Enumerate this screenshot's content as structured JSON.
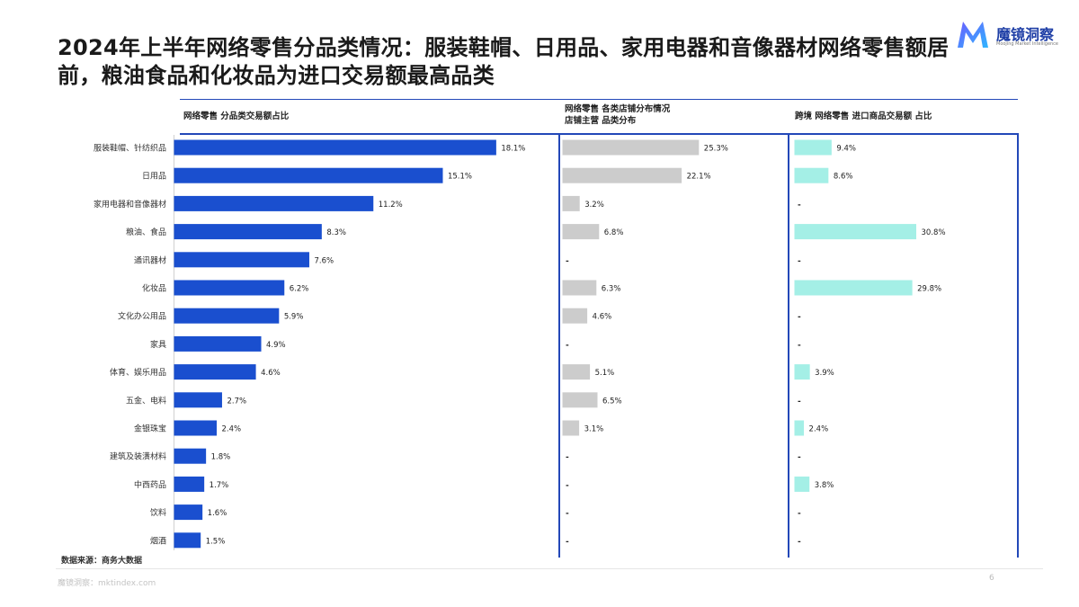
{
  "title": "2024年上半年网络零售分品类情况：服装鞋帽、日用品、家用电器和音像器材网络零售额居前，粮油食品和化妆品为进口交易额最高品类",
  "logo": {
    "name": "魔镜洞察",
    "tagline": "Moojing Market Intelligence"
  },
  "colors": {
    "main": "#1a4fcf",
    "store": "#cccccc",
    "import": "#a4efe6",
    "accent_line": "#2348b8"
  },
  "panels": {
    "main_header": "网络零售 分品类交易额占比",
    "store_header_line1": "网络零售 各类店铺分布情况",
    "store_header_line2": "店铺主营 品类分布",
    "import_header": "跨境 网络零售 进口商品交易额 占比"
  },
  "chart_data": [
    {
      "type": "bar",
      "orientation": "horizontal",
      "title": "网络零售 分品类交易额占比",
      "categories": [
        "服装鞋帽、针纺织品",
        "日用品",
        "家用电器和音像器材",
        "粮油、食品",
        "通讯器材",
        "化妆品",
        "文化办公用品",
        "家具",
        "体育、娱乐用品",
        "五金、电料",
        "金银珠宝",
        "建筑及装潢材料",
        "中西药品",
        "饮料",
        "烟酒"
      ],
      "values": [
        18.1,
        15.1,
        11.2,
        8.3,
        7.6,
        6.2,
        5.9,
        4.9,
        4.6,
        2.7,
        2.4,
        1.8,
        1.7,
        1.6,
        1.5
      ],
      "labels": [
        "18.1%",
        "15.1%",
        "11.2%",
        "8.3%",
        "7.6%",
        "6.2%",
        "5.9%",
        "4.9%",
        "4.6%",
        "2.7%",
        "2.4%",
        "1.8%",
        "1.7%",
        "1.6%",
        "1.5%"
      ],
      "unit": "%"
    },
    {
      "type": "bar",
      "orientation": "horizontal",
      "title": "网络零售 各类店铺分布情况 店铺主营 品类分布",
      "categories": [
        "服装鞋帽、针纺织品",
        "日用品",
        "家用电器和音像器材",
        "粮油、食品",
        "通讯器材",
        "化妆品",
        "文化办公用品",
        "家具",
        "体育、娱乐用品",
        "五金、电料",
        "金银珠宝",
        "建筑及装潢材料",
        "中西药品",
        "饮料",
        "烟酒"
      ],
      "values": [
        25.3,
        22.1,
        3.2,
        6.8,
        null,
        6.3,
        4.6,
        null,
        5.1,
        6.5,
        3.1,
        null,
        null,
        null,
        null
      ],
      "labels": [
        "25.3%",
        "22.1%",
        "3.2%",
        "6.8%",
        "-",
        "6.3%",
        "4.6%",
        "-",
        "5.1%",
        "6.5%",
        "3.1%",
        "-",
        "-",
        "-",
        "-"
      ],
      "unit": "%"
    },
    {
      "type": "bar",
      "orientation": "horizontal",
      "title": "跨境 网络零售 进口商品交易额 占比",
      "categories": [
        "服装鞋帽、针纺织品",
        "日用品",
        "家用电器和音像器材",
        "粮油、食品",
        "通讯器材",
        "化妆品",
        "文化办公用品",
        "家具",
        "体育、娱乐用品",
        "五金、电料",
        "金银珠宝",
        "建筑及装潢材料",
        "中西药品",
        "饮料",
        "烟酒"
      ],
      "values": [
        9.4,
        8.6,
        null,
        30.8,
        null,
        29.8,
        null,
        null,
        3.9,
        null,
        2.4,
        null,
        3.8,
        null,
        null
      ],
      "labels": [
        "9.4%",
        "8.6%",
        "-",
        "30.8%",
        "-",
        "29.8%",
        "-",
        "-",
        "3.9%",
        "-",
        "2.4%",
        "-",
        "3.8%",
        "-",
        "-"
      ],
      "unit": "%"
    }
  ],
  "source": "数据来源：商务大数据",
  "footer": "魔镜洞察：mktindex.com",
  "page_number": "6"
}
